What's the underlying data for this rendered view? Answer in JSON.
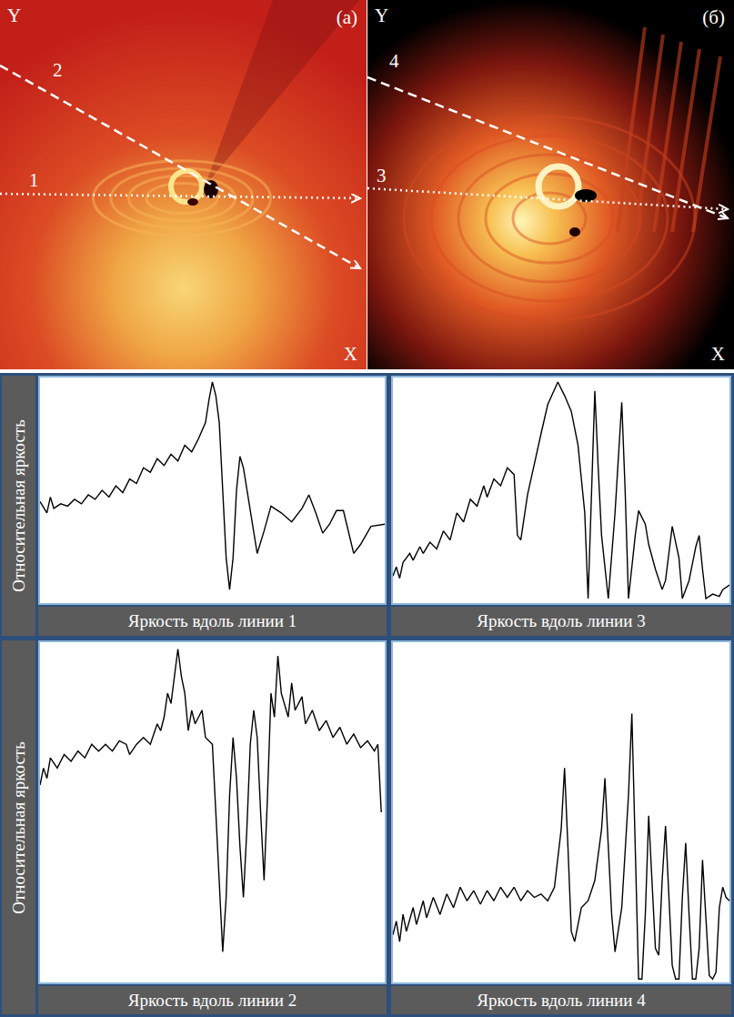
{
  "image_panels": [
    {
      "letter": "(a)",
      "y_label": "Y",
      "x_label": "X",
      "line_labels": [
        "1",
        "2"
      ]
    },
    {
      "letter": "(б)",
      "y_label": "Y",
      "x_label": "X",
      "line_labels": [
        "3",
        "4"
      ]
    }
  ],
  "chart_data": [
    {
      "type": "line",
      "x_label": "Яркость вдоль линии 1",
      "y_label": "Относительная яркость",
      "color": "#000000",
      "tick_labels": false,
      "xlim": [
        0,
        100
      ],
      "ylim": [
        0,
        100
      ],
      "x": [
        0,
        2,
        3,
        4,
        6,
        8,
        10,
        12,
        14,
        16,
        18,
        20,
        22,
        24,
        26,
        28,
        30,
        32,
        34,
        36,
        38,
        40,
        42,
        44,
        46,
        48,
        49,
        50,
        51,
        52,
        53,
        54,
        55,
        56,
        57,
        58,
        59,
        61,
        63,
        65,
        67,
        70,
        73,
        76,
        78,
        80,
        82,
        84,
        86,
        88,
        90,
        91,
        93,
        96,
        100
      ],
      "values": [
        45,
        40,
        47,
        42,
        44,
        43,
        46,
        44,
        48,
        46,
        50,
        47,
        52,
        49,
        55,
        53,
        60,
        58,
        64,
        61,
        66,
        63,
        70,
        67,
        73,
        80,
        90,
        98,
        92,
        80,
        50,
        20,
        6,
        20,
        50,
        65,
        60,
        40,
        22,
        32,
        43,
        40,
        36,
        42,
        48,
        40,
        31,
        35,
        41,
        41,
        28,
        22,
        26,
        34,
        35
      ]
    },
    {
      "type": "line",
      "x_label": "Яркость вдоль линии 3",
      "color": "#000000",
      "tick_labels": false,
      "xlim": [
        0,
        100
      ],
      "ylim": [
        0,
        100
      ],
      "x": [
        0,
        1,
        2,
        3,
        5,
        6,
        8,
        9,
        11,
        13,
        15,
        17,
        19,
        21,
        23,
        25,
        27,
        28,
        30,
        32,
        34,
        36,
        37,
        38,
        40,
        42,
        44,
        46,
        48,
        49,
        51,
        53,
        55,
        57,
        58,
        59,
        60,
        61,
        62,
        64,
        66,
        68,
        69,
        70,
        72,
        73,
        75,
        76,
        78,
        80,
        81,
        83,
        85,
        86,
        88,
        90,
        91,
        92,
        93,
        95,
        97,
        98,
        100
      ],
      "values": [
        12,
        16,
        11,
        18,
        22,
        19,
        25,
        22,
        27,
        24,
        32,
        28,
        40,
        36,
        46,
        43,
        52,
        47,
        55,
        52,
        60,
        57,
        30,
        28,
        48,
        62,
        75,
        88,
        95,
        98,
        92,
        85,
        70,
        40,
        2,
        50,
        94,
        60,
        30,
        2,
        40,
        89,
        50,
        2,
        30,
        41,
        35,
        26,
        15,
        6,
        10,
        34,
        20,
        2,
        10,
        25,
        30,
        15,
        2,
        4,
        3,
        6,
        8
      ]
    },
    {
      "type": "line",
      "x_label": "Яркость вдоль линии 2",
      "y_label": "Относительная яркость",
      "color": "#000000",
      "tick_labels": false,
      "xlim": [
        0,
        100
      ],
      "ylim": [
        0,
        100
      ],
      "x": [
        0,
        1,
        2,
        3,
        5,
        7,
        9,
        11,
        13,
        15,
        17,
        19,
        21,
        23,
        25,
        26,
        28,
        30,
        32,
        34,
        35,
        36,
        37,
        38,
        39,
        40,
        41,
        42,
        43,
        44,
        45,
        47,
        48,
        50,
        51,
        52,
        53,
        54,
        55,
        56,
        57,
        58,
        59,
        60,
        61,
        62,
        63,
        64,
        65,
        66,
        67,
        68,
        69,
        70,
        72,
        73,
        74,
        76,
        77,
        79,
        81,
        83,
        85,
        87,
        89,
        91,
        93,
        95,
        97,
        98,
        99
      ],
      "values": [
        58,
        63,
        60,
        66,
        63,
        67,
        65,
        68,
        66,
        70,
        68,
        70,
        68,
        71,
        70,
        67,
        70,
        72,
        70,
        76,
        74,
        78,
        85,
        82,
        90,
        98,
        90,
        85,
        74,
        80,
        76,
        80,
        72,
        70,
        50,
        30,
        9,
        25,
        55,
        72,
        60,
        40,
        25,
        45,
        70,
        80,
        72,
        50,
        30,
        55,
        85,
        78,
        96,
        85,
        78,
        88,
        80,
        84,
        76,
        80,
        74,
        77,
        72,
        75,
        70,
        73,
        69,
        71,
        68,
        70,
        50
      ]
    },
    {
      "type": "line",
      "x_label": "Яркость вдоль линии 4",
      "color": "#000000",
      "tick_labels": false,
      "xlim": [
        0,
        100
      ],
      "ylim": [
        0,
        100
      ],
      "x": [
        0,
        1,
        2,
        3,
        4,
        6,
        7,
        9,
        10,
        12,
        14,
        16,
        18,
        20,
        22,
        24,
        26,
        28,
        30,
        32,
        34,
        36,
        38,
        40,
        42,
        44,
        46,
        48,
        50,
        51,
        52,
        53,
        54,
        56,
        58,
        60,
        62,
        63,
        64,
        65,
        66,
        67,
        68,
        70,
        71,
        72,
        73,
        74,
        75,
        76,
        77,
        78,
        79,
        80,
        81,
        82,
        83,
        84,
        85,
        86,
        87,
        88,
        89,
        90,
        91,
        92,
        93,
        94,
        95,
        96,
        97,
        98,
        99,
        100
      ],
      "values": [
        14,
        18,
        12,
        20,
        15,
        22,
        17,
        24,
        19,
        25,
        20,
        26,
        22,
        28,
        24,
        27,
        23,
        27,
        24,
        28,
        25,
        28,
        24,
        27,
        25,
        26,
        24,
        28,
        45,
        63,
        40,
        15,
        12,
        22,
        24,
        30,
        45,
        60,
        40,
        20,
        9,
        15,
        22,
        55,
        79,
        40,
        1,
        1,
        20,
        49,
        30,
        10,
        8,
        30,
        46,
        25,
        5,
        1,
        1,
        25,
        41,
        20,
        1,
        1,
        10,
        36,
        20,
        2,
        1,
        3,
        22,
        28,
        25,
        24
      ]
    }
  ]
}
